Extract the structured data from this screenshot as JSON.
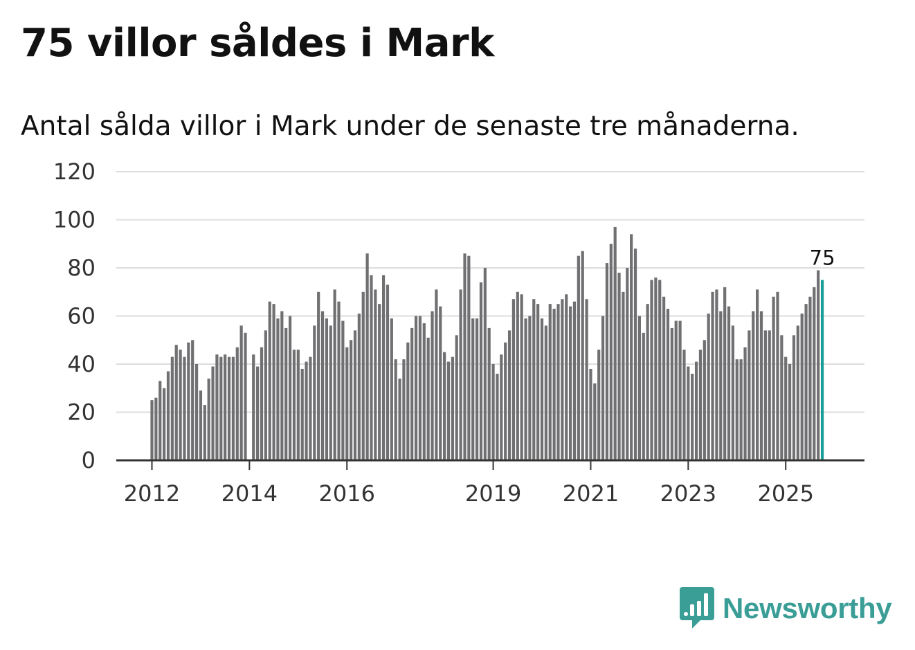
{
  "title": "75 villor såldes i Mark",
  "subtitle": "Antal sålda villor i Mark under de senaste tre månaderna.",
  "brand": {
    "name": "Newsworthy",
    "icon": "newsworthy-logo-icon",
    "color": "#3a9e97"
  },
  "chart_data": {
    "type": "bar",
    "title": "75 villor såldes i Mark",
    "subtitle": "Antal sålda villor i Mark under de senaste tre månaderna.",
    "xlabel": "",
    "ylabel": "",
    "ylim": [
      0,
      120
    ],
    "yticks": [
      0,
      20,
      40,
      60,
      80,
      100,
      120
    ],
    "grid": true,
    "legend": "none",
    "bar_color": "#707073",
    "highlight_color": "#1a9e96",
    "start": "2012-01",
    "x_tick_labels": [
      "2012",
      "2014",
      "2016",
      "2019",
      "2021",
      "2023",
      "2025"
    ],
    "x_tick_index": [
      0,
      24,
      48,
      84,
      108,
      132,
      156
    ],
    "highlight_label": "75",
    "values": [
      25,
      26,
      33,
      30,
      37,
      43,
      48,
      46,
      43,
      49,
      50,
      40,
      29,
      23,
      34,
      39,
      44,
      43,
      44,
      43,
      43,
      47,
      56,
      53,
      0,
      44,
      39,
      47,
      54,
      66,
      65,
      59,
      62,
      55,
      60,
      46,
      46,
      38,
      41,
      43,
      56,
      70,
      62,
      59,
      56,
      71,
      66,
      58,
      47,
      50,
      54,
      61,
      70,
      86,
      77,
      71,
      65,
      77,
      73,
      59,
      42,
      34,
      42,
      49,
      55,
      60,
      60,
      57,
      51,
      62,
      71,
      64,
      45,
      41,
      43,
      52,
      71,
      86,
      85,
      59,
      59,
      74,
      80,
      55,
      40,
      36,
      44,
      49,
      54,
      67,
      70,
      69,
      59,
      60,
      67,
      65,
      59,
      56,
      65,
      63,
      65,
      67,
      69,
      64,
      66,
      85,
      87,
      67,
      38,
      32,
      46,
      60,
      82,
      90,
      97,
      78,
      70,
      80,
      94,
      88,
      60,
      53,
      65,
      75,
      76,
      75,
      68,
      63,
      55,
      58,
      58,
      46,
      39,
      36,
      41,
      46,
      50,
      61,
      70,
      71,
      62,
      72,
      64,
      56,
      42,
      42,
      47,
      54,
      62,
      71,
      62,
      54,
      54,
      68,
      70,
      52,
      43,
      40,
      52,
      56,
      61,
      65,
      68,
      72,
      79,
      75
    ]
  }
}
